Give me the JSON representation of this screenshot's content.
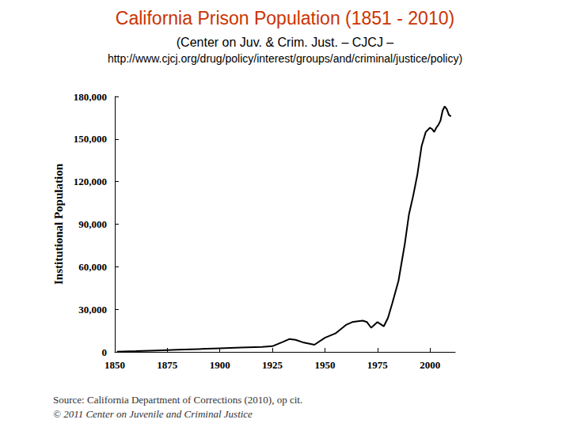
{
  "chart_data": {
    "type": "line",
    "title": "California Prison Population (1851 - 2010)",
    "subtitle": [
      "(Center on Juv. & Crim. Just. – CJCJ –",
      "http://www.cjcj.org/drug/policy/interest/groups/and/criminal/justice/policy)"
    ],
    "y_label": "Institutional Population",
    "annotations": [
      "Source: California Department of Corrections (2010), op cit.",
      "© 2011 Center on Juvenile and Criminal Justice"
    ],
    "x": [
      1851,
      1860,
      1870,
      1880,
      1890,
      1900,
      1910,
      1920,
      1925,
      1930,
      1933,
      1936,
      1940,
      1945,
      1950,
      1955,
      1960,
      1963,
      1965,
      1968,
      1970,
      1972,
      1975,
      1977,
      1978,
      1980,
      1982,
      1985,
      1988,
      1990,
      1992,
      1994,
      1996,
      1998,
      2000,
      2001,
      2002,
      2003,
      2004,
      2005,
      2006,
      2007,
      2008,
      2009,
      2010
    ],
    "values": [
      100,
      500,
      1000,
      1500,
      2000,
      2500,
      3000,
      3500,
      4000,
      7000,
      9000,
      8500,
      6500,
      5000,
      10000,
      13000,
      19000,
      21000,
      21500,
      22000,
      21000,
      17000,
      21000,
      19000,
      18000,
      24000,
      34000,
      50000,
      76000,
      97000,
      110000,
      125000,
      145000,
      155000,
      158000,
      157000,
      155000,
      158000,
      160000,
      163000,
      170000,
      173000,
      171000,
      167000,
      166000
    ],
    "color": "#000000",
    "xlim": [
      1850,
      2012
    ],
    "xticks": [
      1850,
      1875,
      1900,
      1925,
      1950,
      1975,
      2000
    ],
    "ylim": [
      0,
      180000
    ],
    "yticks": [
      0,
      {
        "value": 30000,
        "label": "30,000"
      },
      {
        "value": 60000,
        "label": "60,000"
      },
      {
        "value": 90000,
        "label": "90,000"
      },
      {
        "value": 120000,
        "label": "120,000"
      },
      {
        "value": 150000,
        "label": "150,000"
      },
      {
        "value": 180000,
        "label": "180,000"
      }
    ],
    "grid": false
  }
}
